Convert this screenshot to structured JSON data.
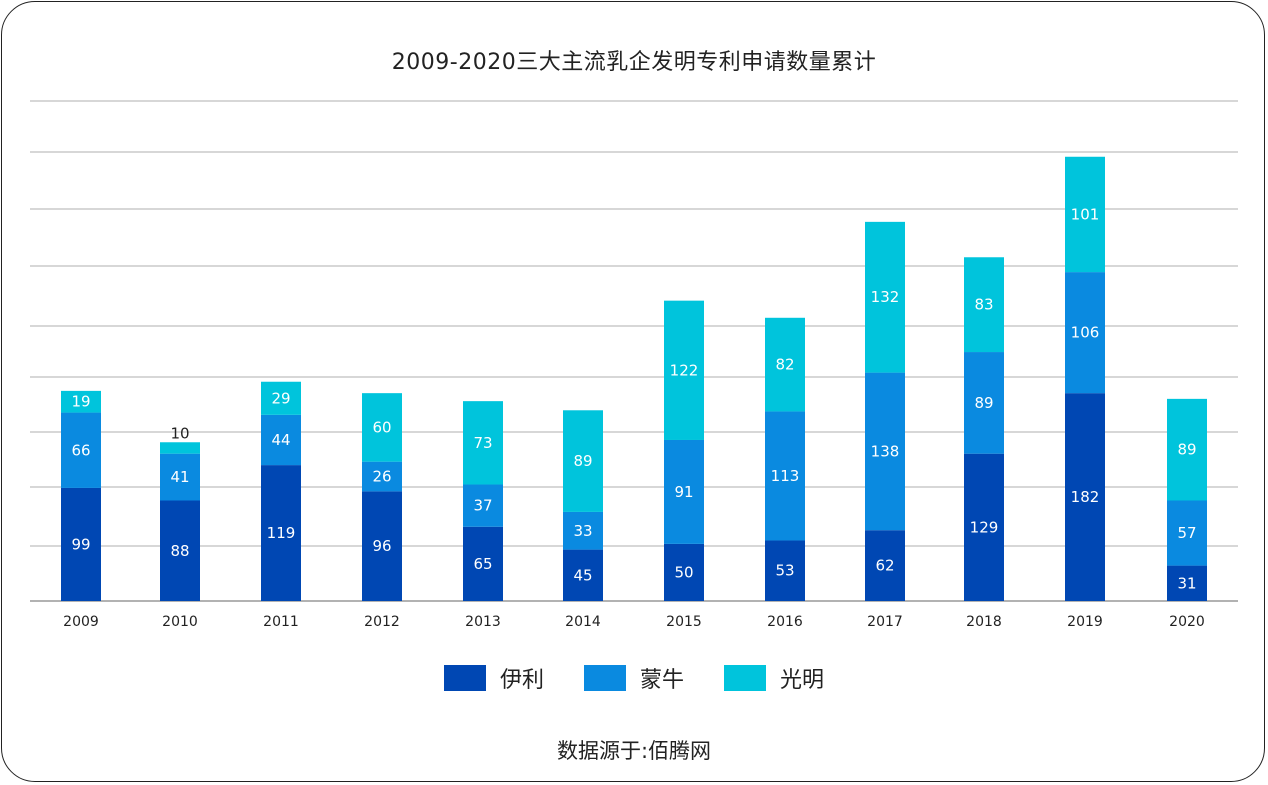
{
  "colors": {
    "yili": "#0047b3",
    "mengniu": "#0a8ae0",
    "guangming": "#00c4dc",
    "grid": "#bfbfbf",
    "axis": "#999999"
  },
  "chart_data": {
    "type": "bar",
    "stacked": true,
    "title": "2009-2020三大主流乳企发明专利申请数量累计",
    "xlabel": "",
    "ylabel": "",
    "categories": [
      "2009",
      "2010",
      "2011",
      "2012",
      "2013",
      "2014",
      "2015",
      "2016",
      "2017",
      "2018",
      "2019",
      "2020"
    ],
    "series": [
      {
        "name": "伊利",
        "values": [
          99,
          88,
          119,
          96,
          65,
          45,
          50,
          53,
          62,
          129,
          182,
          31
        ]
      },
      {
        "name": "蒙牛",
        "values": [
          66,
          41,
          44,
          26,
          37,
          33,
          91,
          113,
          138,
          89,
          106,
          57
        ]
      },
      {
        "name": "光明",
        "values": [
          19,
          10,
          29,
          60,
          73,
          89,
          122,
          82,
          132,
          83,
          101,
          89
        ]
      }
    ],
    "ylim": [
      0,
      438
    ],
    "grid": true,
    "legend": "bottom"
  },
  "source": "数据源于:佰腾网"
}
